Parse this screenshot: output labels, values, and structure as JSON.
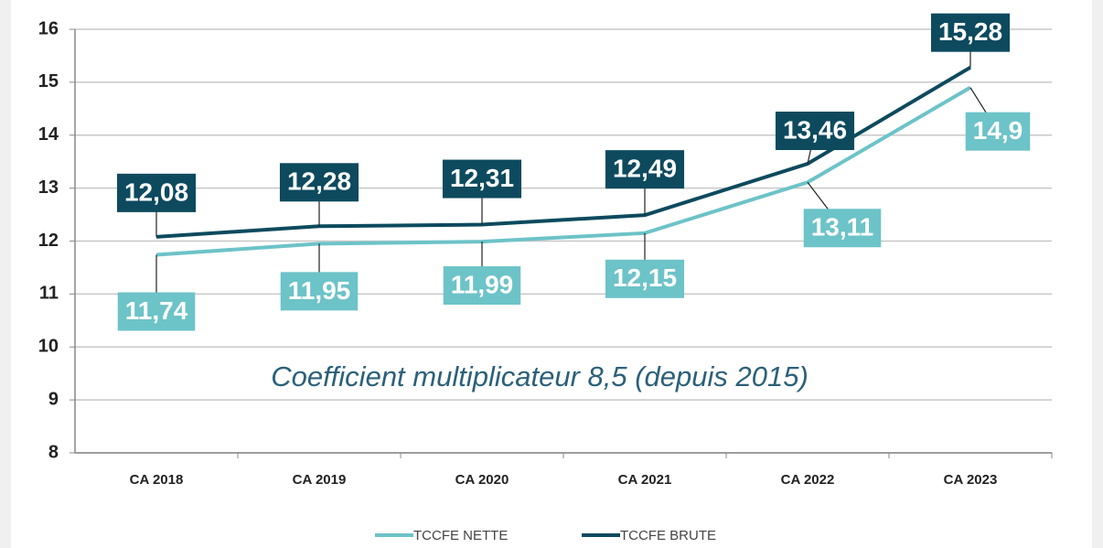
{
  "chart_data": {
    "type": "line",
    "annotation": "Coefficient multiplicateur 8,5 (depuis 2015)",
    "categories": [
      "CA 2018",
      "CA 2019",
      "CA 2020",
      "CA 2021",
      "CA 2022",
      "CA 2023"
    ],
    "series": [
      {
        "name": "TCCFE NETTE",
        "color": "#6cc3c8",
        "values": [
          11.74,
          11.95,
          11.99,
          12.15,
          13.11,
          14.9
        ],
        "value_labels": [
          "11,74",
          "11,95",
          "11,99",
          "12,15",
          "13,11",
          "14,9"
        ]
      },
      {
        "name": "TCCFE BRUTE",
        "color": "#0d4a5e",
        "values": [
          12.08,
          12.28,
          12.31,
          12.49,
          13.46,
          15.28
        ],
        "value_labels": [
          "12,08",
          "12,28",
          "12,31",
          "12,49",
          "13,46",
          "15,28"
        ]
      }
    ],
    "ylim": [
      8,
      16
    ],
    "yticks": [
      8,
      9,
      10,
      11,
      12,
      13,
      14,
      15,
      16
    ],
    "grid": true,
    "legend": "bottom"
  }
}
